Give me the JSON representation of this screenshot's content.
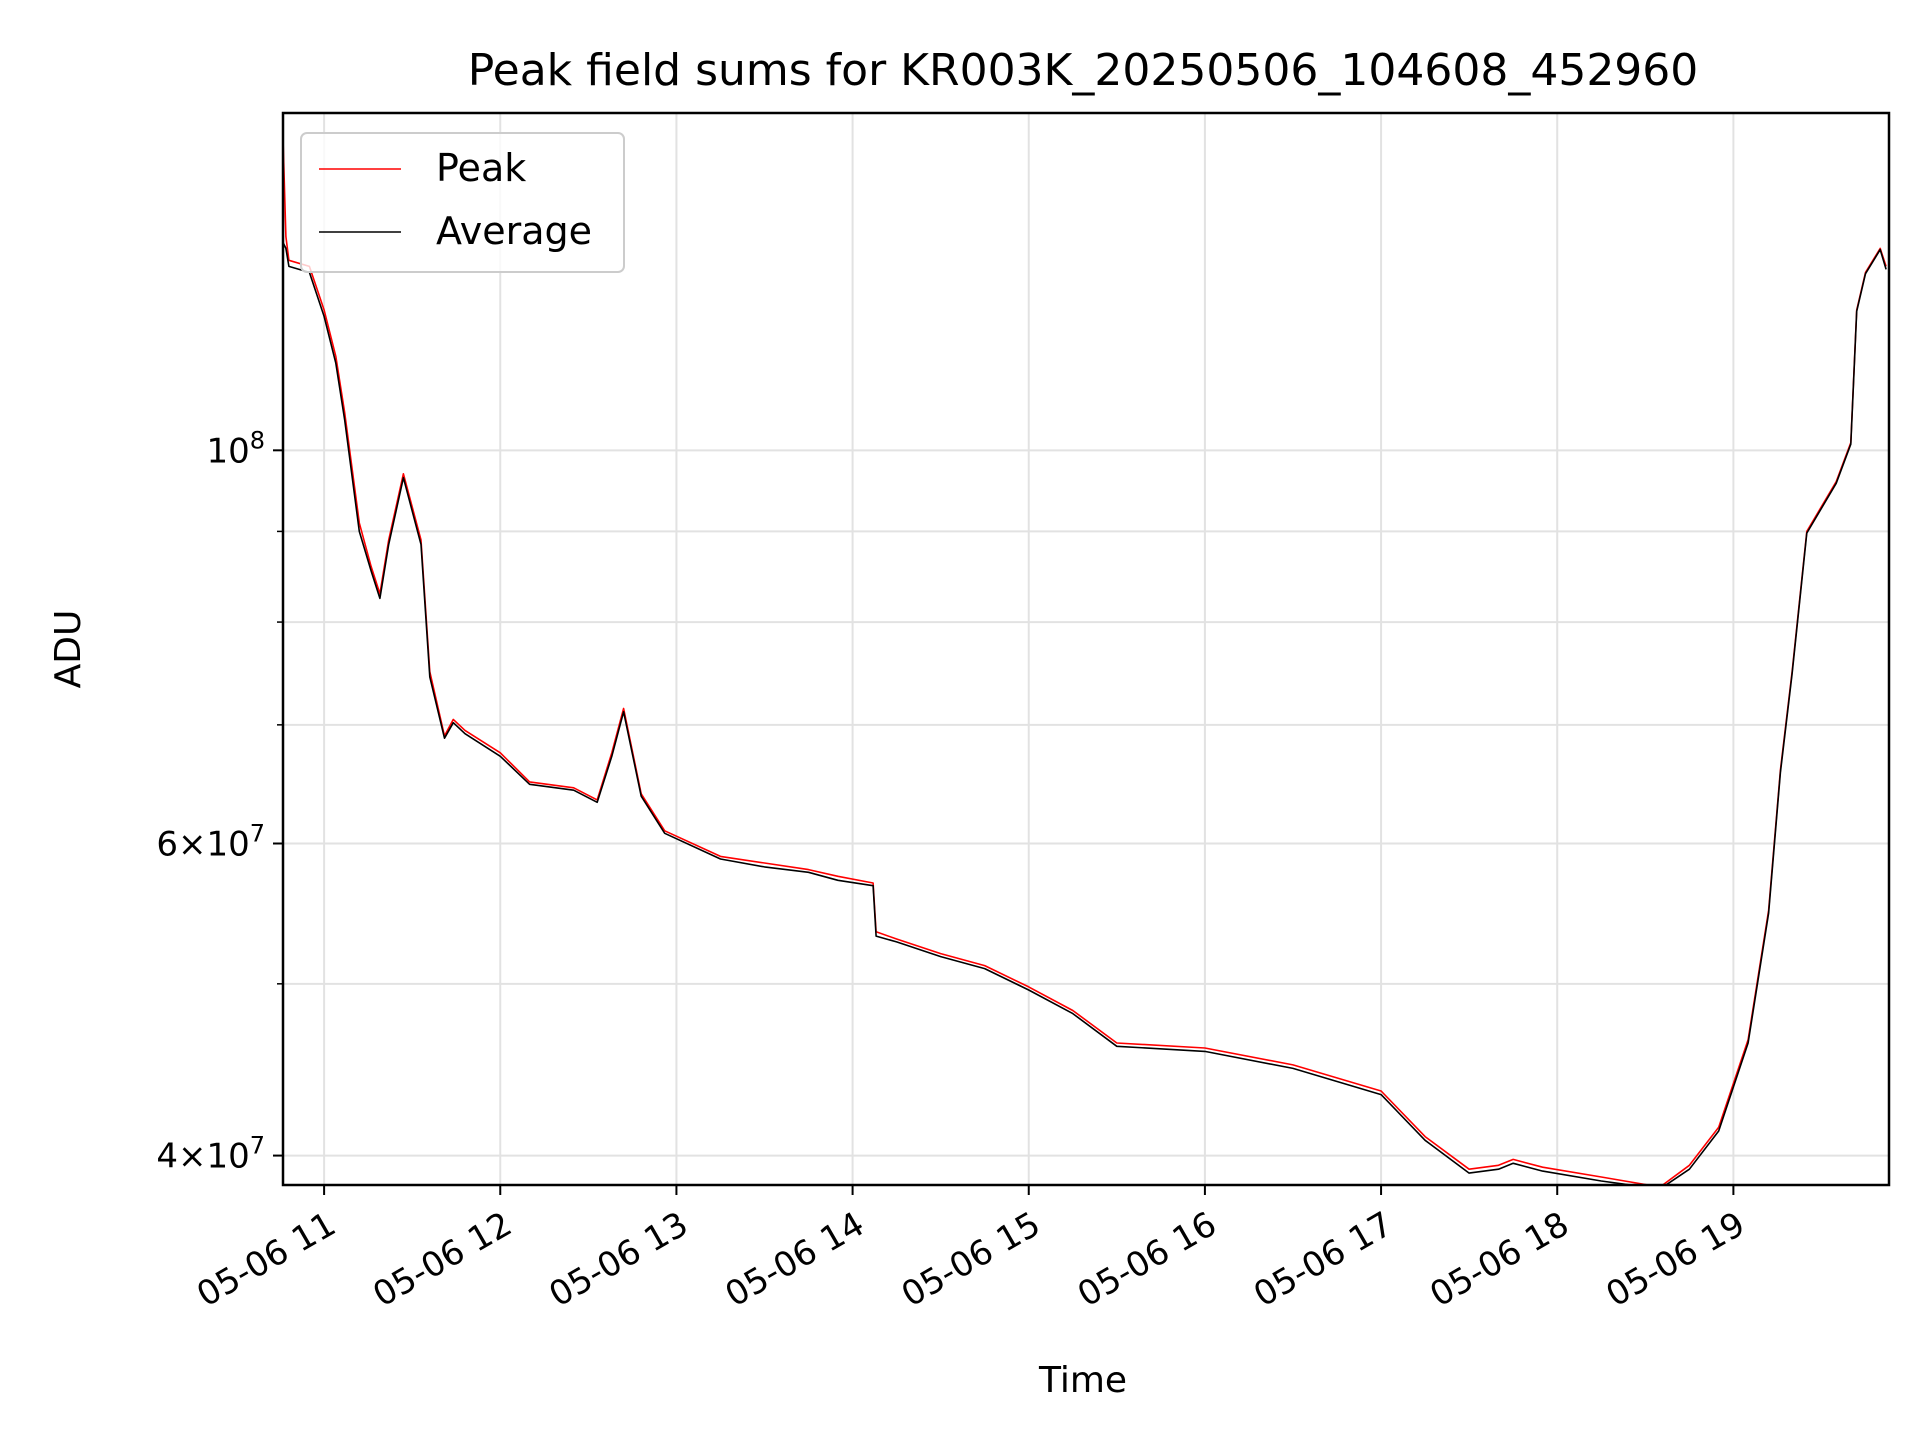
{
  "chart_data": {
    "type": "line",
    "title": "Peak field sums for KR003K_20250506_104608_452960",
    "xlabel": "Time",
    "ylabel": "ADU",
    "y_scale": "log",
    "xlim": [
      "2025-05-06 10:46",
      "2025-05-06 19:53"
    ],
    "ylim": [
      38500000,
      155000000
    ],
    "grid": true,
    "legend_position": "top-left",
    "x_ticks": [
      "2025-05-06 11:00",
      "2025-05-06 12:00",
      "2025-05-06 13:00",
      "2025-05-06 14:00",
      "2025-05-06 15:00",
      "2025-05-06 16:00",
      "2025-05-06 17:00",
      "2025-05-06 18:00",
      "2025-05-06 19:00"
    ],
    "x_tick_labels": [
      "05-06 11",
      "05-06 12",
      "05-06 13",
      "05-06 14",
      "05-06 15",
      "05-06 16",
      "05-06 17",
      "05-06 18",
      "05-06 19"
    ],
    "y_ticks_major": [
      {
        "value": 100000000,
        "mantissa": "",
        "exponent": "8"
      },
      {
        "value": 60000000,
        "mantissa": "6",
        "exponent": "7"
      },
      {
        "value": 40000000,
        "mantissa": "4",
        "exponent": "7"
      }
    ],
    "y_ticks_minor": [
      90000000,
      80000000,
      70000000,
      50000000
    ],
    "series": [
      {
        "name": "Peak",
        "color": "#ff0000",
        "x": [
          "2025-05-06 10:46",
          "2025-05-06 10:47",
          "2025-05-06 10:48",
          "2025-05-06 10:55",
          "2025-05-06 11:00",
          "2025-05-06 11:04",
          "2025-05-06 11:07",
          "2025-05-06 11:12",
          "2025-05-06 11:16",
          "2025-05-06 11:19",
          "2025-05-06 11:22",
          "2025-05-06 11:27",
          "2025-05-06 11:33",
          "2025-05-06 11:36",
          "2025-05-06 11:41",
          "2025-05-06 11:44",
          "2025-05-06 11:48",
          "2025-05-06 12:00",
          "2025-05-06 12:10",
          "2025-05-06 12:25",
          "2025-05-06 12:33",
          "2025-05-06 12:38",
          "2025-05-06 12:42",
          "2025-05-06 12:48",
          "2025-05-06 12:56",
          "2025-05-06 13:15",
          "2025-05-06 13:30",
          "2025-05-06 13:45",
          "2025-05-06 13:55",
          "2025-05-06 14:07",
          "2025-05-06 14:08",
          "2025-05-06 14:15",
          "2025-05-06 14:30",
          "2025-05-06 14:45",
          "2025-05-06 15:00",
          "2025-05-06 15:15",
          "2025-05-06 15:30",
          "2025-05-06 16:00",
          "2025-05-06 16:30",
          "2025-05-06 17:00",
          "2025-05-06 17:15",
          "2025-05-06 17:30",
          "2025-05-06 17:40",
          "2025-05-06 17:45",
          "2025-05-06 17:55",
          "2025-05-06 18:15",
          "2025-05-06 18:35",
          "2025-05-06 18:45",
          "2025-05-06 18:55",
          "2025-05-06 19:05",
          "2025-05-06 19:12",
          "2025-05-06 19:16",
          "2025-05-06 19:20",
          "2025-05-06 19:25",
          "2025-05-06 19:35",
          "2025-05-06 19:40",
          "2025-05-06 19:42",
          "2025-05-06 19:45",
          "2025-05-06 19:50",
          "2025-05-06 19:52"
        ],
        "y": [
          150000000,
          132000000,
          128000000,
          127000000,
          120000000,
          113000000,
          105000000,
          91000000,
          86000000,
          83000000,
          89000000,
          97000000,
          89000000,
          75000000,
          69000000,
          70500000,
          69500000,
          67500000,
          65000000,
          64500000,
          63500000,
          67500000,
          71500000,
          64000000,
          61000000,
          59000000,
          58500000,
          58000000,
          57500000,
          57000000,
          53500000,
          53000000,
          52000000,
          51200000,
          49800000,
          48300000,
          46300000,
          46000000,
          45000000,
          43500000,
          41000000,
          39300000,
          39500000,
          39800000,
          39400000,
          38900000,
          38400000,
          39500000,
          41500000,
          46500000,
          55000000,
          66000000,
          75000000,
          90000000,
          96000000,
          101000000,
          120000000,
          126000000,
          130000000,
          127000000
        ]
      },
      {
        "name": "Average",
        "color": "#000000",
        "x": [
          "2025-05-06 10:46",
          "2025-05-06 10:47",
          "2025-05-06 10:48",
          "2025-05-06 10:55",
          "2025-05-06 11:00",
          "2025-05-06 11:04",
          "2025-05-06 11:07",
          "2025-05-06 11:12",
          "2025-05-06 11:16",
          "2025-05-06 11:19",
          "2025-05-06 11:22",
          "2025-05-06 11:27",
          "2025-05-06 11:33",
          "2025-05-06 11:36",
          "2025-05-06 11:41",
          "2025-05-06 11:44",
          "2025-05-06 11:48",
          "2025-05-06 12:00",
          "2025-05-06 12:10",
          "2025-05-06 12:25",
          "2025-05-06 12:33",
          "2025-05-06 12:38",
          "2025-05-06 12:42",
          "2025-05-06 12:48",
          "2025-05-06 12:56",
          "2025-05-06 13:15",
          "2025-05-06 13:30",
          "2025-05-06 13:45",
          "2025-05-06 13:55",
          "2025-05-06 14:07",
          "2025-05-06 14:08",
          "2025-05-06 14:15",
          "2025-05-06 14:30",
          "2025-05-06 14:45",
          "2025-05-06 15:00",
          "2025-05-06 15:15",
          "2025-05-06 15:30",
          "2025-05-06 16:00",
          "2025-05-06 16:30",
          "2025-05-06 17:00",
          "2025-05-06 17:15",
          "2025-05-06 17:30",
          "2025-05-06 17:40",
          "2025-05-06 17:45",
          "2025-05-06 17:55",
          "2025-05-06 18:15",
          "2025-05-06 18:35",
          "2025-05-06 18:45",
          "2025-05-06 18:55",
          "2025-05-06 19:05",
          "2025-05-06 19:12",
          "2025-05-06 19:16",
          "2025-05-06 19:20",
          "2025-05-06 19:25",
          "2025-05-06 19:35",
          "2025-05-06 19:40",
          "2025-05-06 19:42",
          "2025-05-06 19:45",
          "2025-05-06 19:50",
          "2025-05-06 19:52"
        ],
        "y": [
          131000000,
          130000000,
          127000000,
          126000000,
          119000000,
          112000000,
          104000000,
          90000000,
          85500000,
          82500000,
          88500000,
          96500000,
          88500000,
          74500000,
          68800000,
          70200000,
          69200000,
          67200000,
          64800000,
          64300000,
          63300000,
          67200000,
          71200000,
          63800000,
          60800000,
          58800000,
          58200000,
          57800000,
          57200000,
          56800000,
          53200000,
          52800000,
          51800000,
          51000000,
          49600000,
          48100000,
          46100000,
          45800000,
          44800000,
          43300000,
          40800000,
          39100000,
          39300000,
          39600000,
          39200000,
          38700000,
          38300000,
          39300000,
          41300000,
          46300000,
          54800000,
          65800000,
          74800000,
          89800000,
          95800000,
          100800000,
          119800000,
          125800000,
          129800000,
          126500000
        ]
      }
    ]
  }
}
